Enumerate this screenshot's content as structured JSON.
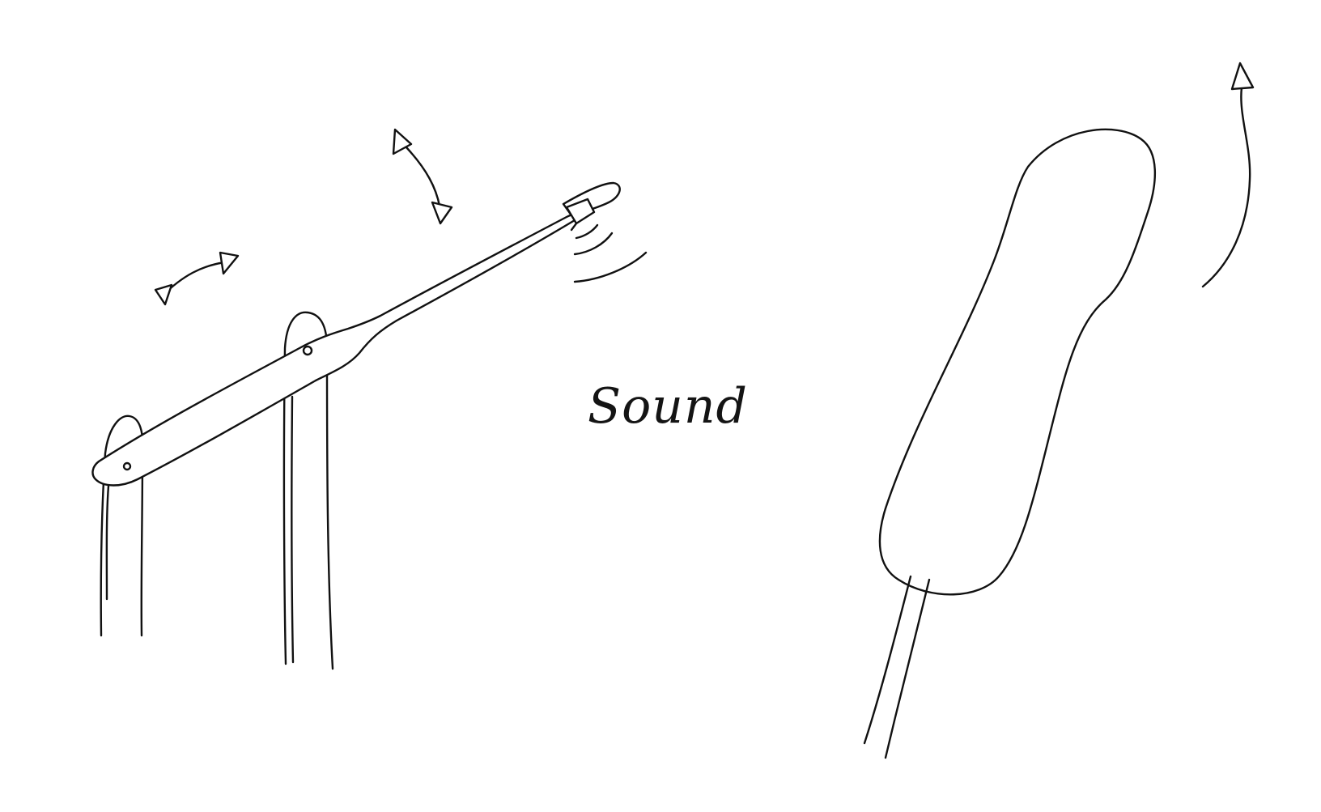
{
  "caption": {
    "text": "Sound"
  },
  "colors": {
    "ink": "#111111",
    "background": "#ffffff"
  },
  "figures": {
    "left": "tone-arm-on-posts-sketch",
    "right": "paddle-swing-sketch"
  }
}
